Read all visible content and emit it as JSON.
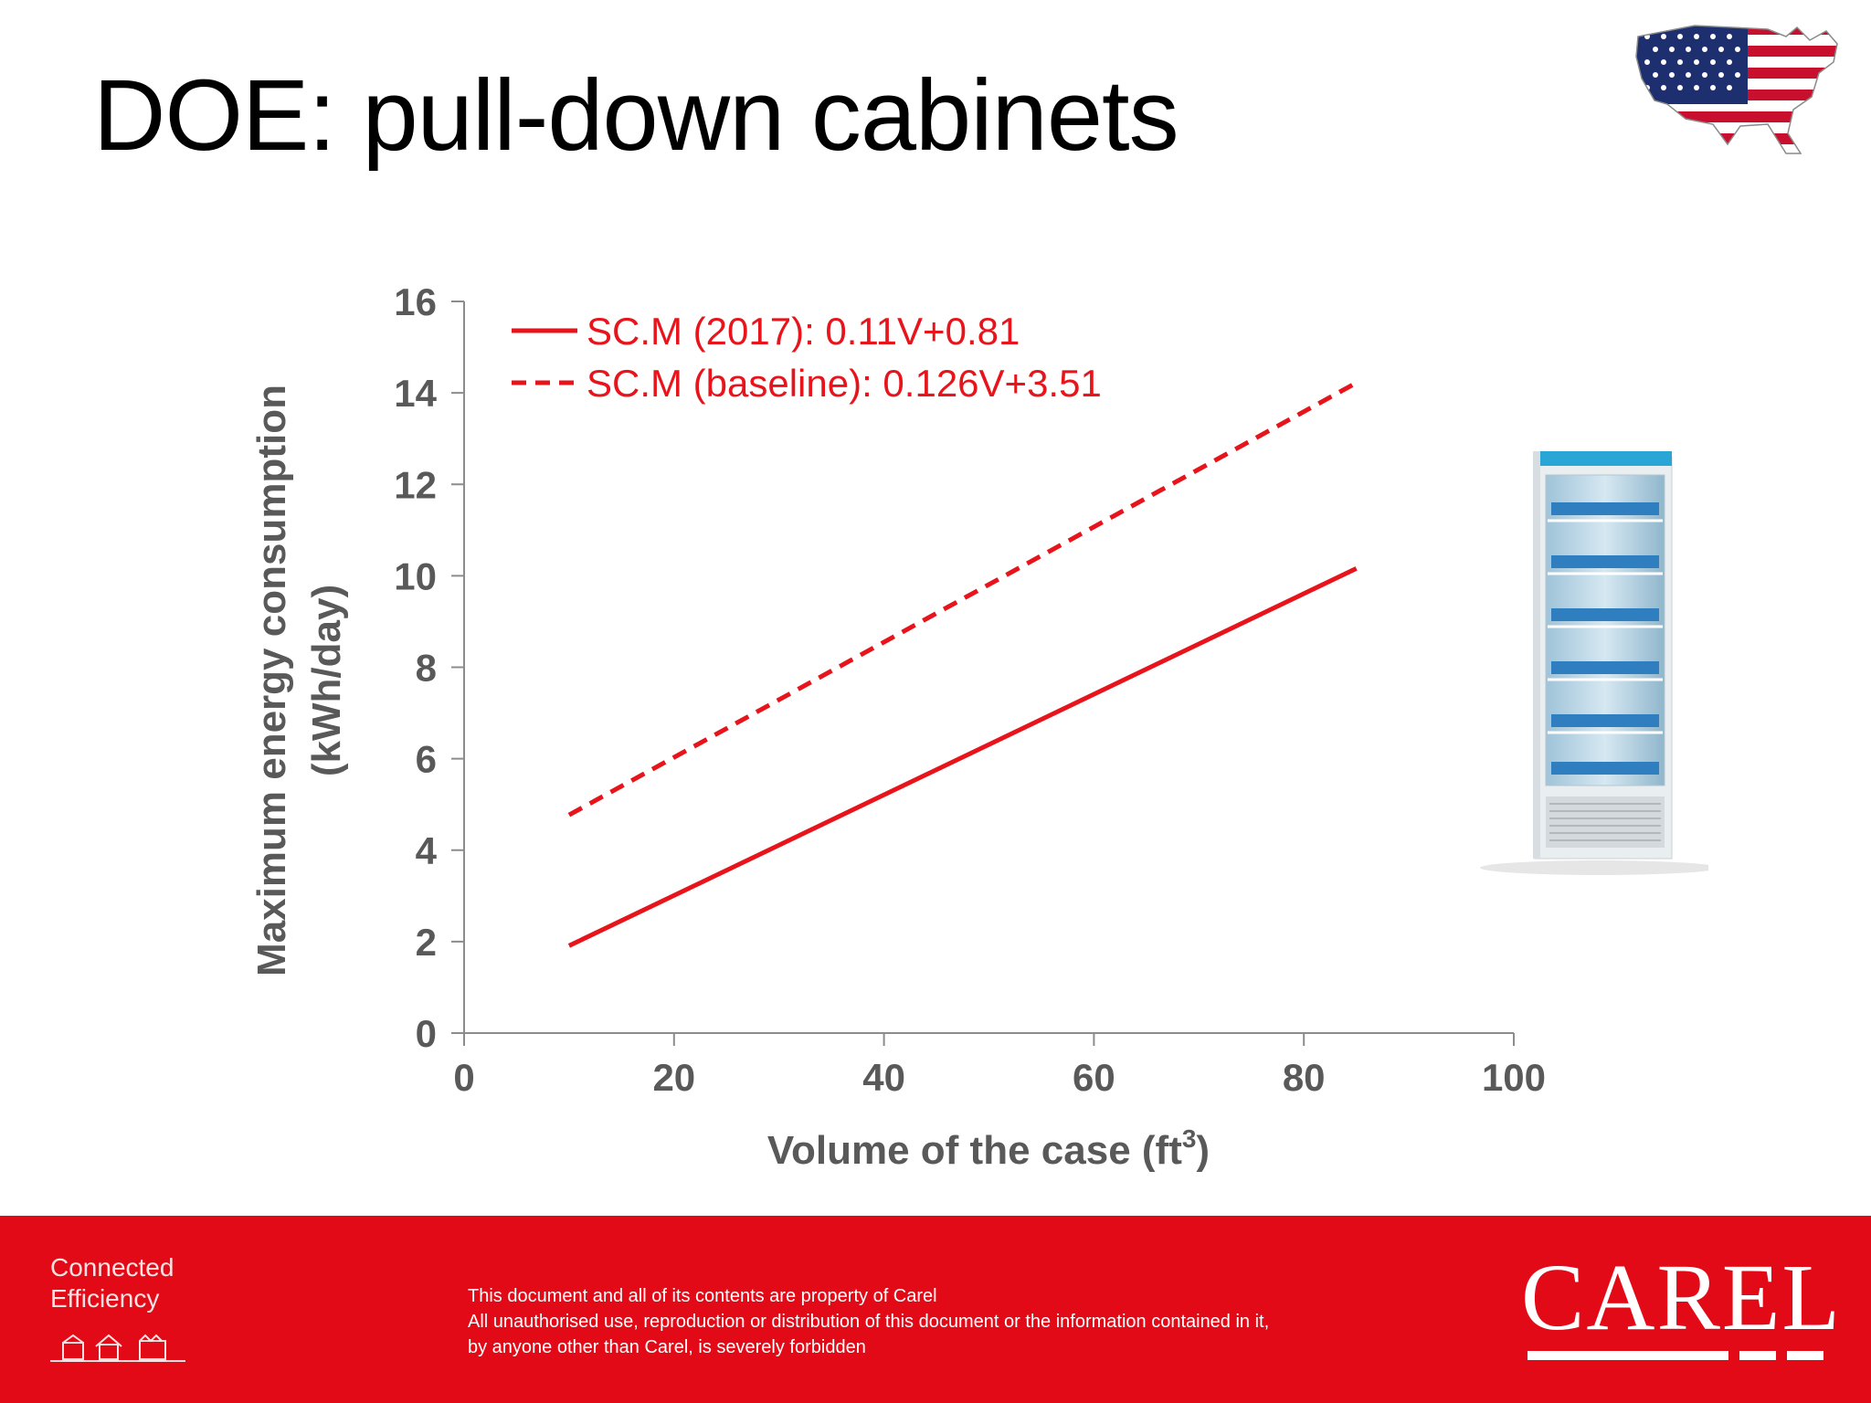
{
  "slide": {
    "title": "DOE: pull-down cabinets"
  },
  "chart_data": {
    "type": "line",
    "xlabel": "Volume of the case (ft",
    "xlabel_sup": "3",
    "xlabel_close": ")",
    "ylabel": [
      "Maximum energy consumption",
      "(kWh/day)"
    ],
    "xlim": [
      0,
      100
    ],
    "ylim": [
      0,
      16
    ],
    "xticks": [
      0,
      20,
      40,
      60,
      80,
      100
    ],
    "yticks": [
      0,
      2,
      4,
      6,
      8,
      10,
      12,
      14,
      16
    ],
    "grid": false,
    "legend_position": "top-left",
    "series": [
      {
        "name": "SC.M (2017): 0.11V+0.81",
        "style": "solid",
        "color": "#e8141b",
        "x": [
          10,
          85
        ],
        "y": [
          1.91,
          10.16
        ]
      },
      {
        "name": "SC.M (baseline): 0.126V+3.51",
        "style": "dashed",
        "color": "#e8141b",
        "x": [
          10,
          85
        ],
        "y": [
          4.77,
          14.22
        ]
      }
    ]
  },
  "icons": {
    "flag": "us-flag-map-icon",
    "fridge": "refrigerated-cabinet-image",
    "footer": "buildings-icon"
  },
  "colors": {
    "brand_red": "#e30a17",
    "axis_text": "#595959"
  },
  "footer": {
    "tagline": [
      "Connected",
      "Efficiency"
    ],
    "disclaimer": [
      "This document and all of its contents are property of Carel",
      "All unauthorised use, reproduction or distribution of this document or the information contained in it,",
      "by anyone other than Carel, is severely forbidden"
    ],
    "logo_text": "CAREL"
  }
}
